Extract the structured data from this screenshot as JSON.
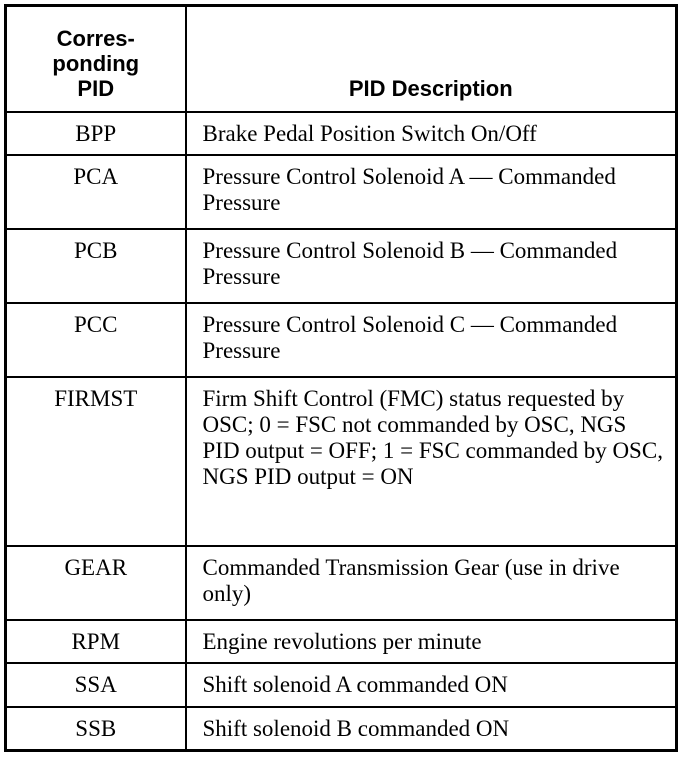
{
  "table": {
    "headers": [
      "Corres-\nponding\nPID",
      "PID Description"
    ],
    "rows": [
      {
        "pid": "BPP",
        "description": "Brake Pedal Position Switch On/Off"
      },
      {
        "pid": "PCA",
        "description": "Pressure Control Solenoid A — Commanded Pressure"
      },
      {
        "pid": "PCB",
        "description": "Pressure Control Solenoid B — Commanded Pressure"
      },
      {
        "pid": "PCC",
        "description": "Pressure Control Solenoid C — Commanded Pressure"
      },
      {
        "pid": "FIRMST",
        "description": "Firm Shift Control (FMC) status requested by OSC; 0 = FSC not commanded by OSC, NGS PID output = OFF; 1 = FSC commanded by OSC, NGS PID output = ON"
      },
      {
        "pid": "GEAR",
        "description": "Commanded Transmission Gear (use in drive only)"
      },
      {
        "pid": "RPM",
        "description": "Engine revolutions per minute"
      },
      {
        "pid": "SSA",
        "description": "Shift solenoid A commanded ON"
      },
      {
        "pid": "SSB",
        "description": "Shift solenoid B commanded ON"
      }
    ]
  }
}
